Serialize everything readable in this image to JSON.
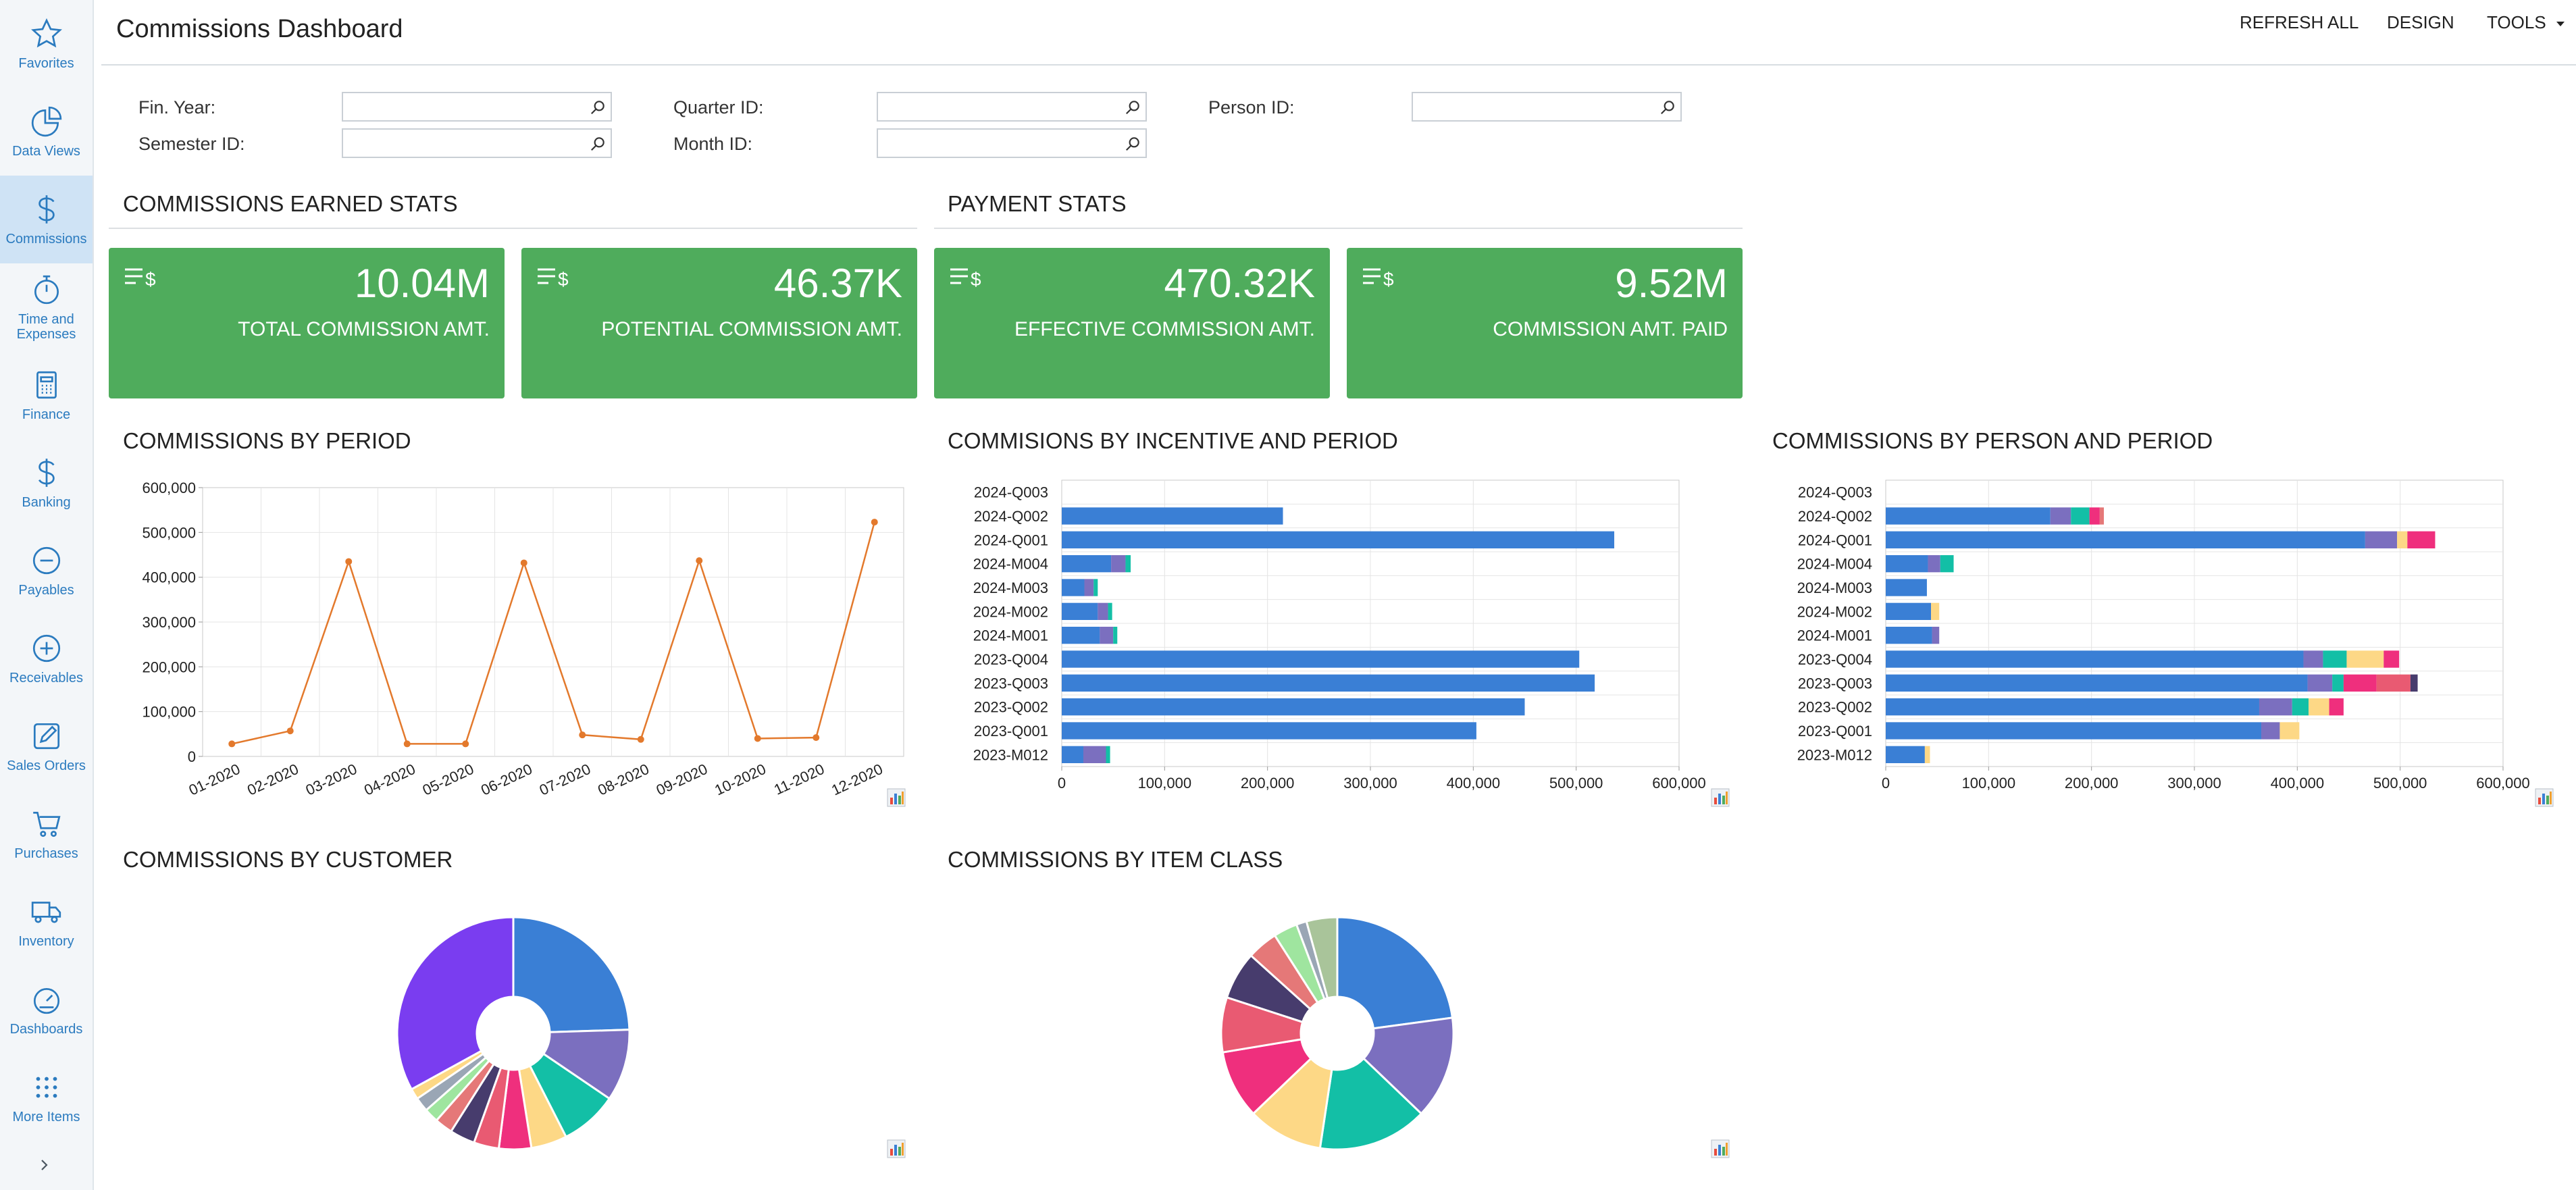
{
  "colors": {
    "accent": "#2b7bbf",
    "kpi_bg": "#4fac5c",
    "line": "#e3792c",
    "bar_primary": "#3a7fd5",
    "palette": [
      "#3a7fd5",
      "#7b6fbf",
      "#13bfa6",
      "#fdd886",
      "#ef2f7d",
      "#e95a72",
      "#473c6d",
      "#e57878",
      "#9fe59f",
      "#9aa6b5",
      "#a9c49a",
      "#7a3df0"
    ]
  },
  "sidebar": {
    "items": [
      {
        "label": "Favorites",
        "icon": "star-icon"
      },
      {
        "label": "Data Views",
        "icon": "pie-chart-icon"
      },
      {
        "label": "Commissions",
        "icon": "dollar-icon"
      },
      {
        "label": "Time and Expenses",
        "icon": "stopwatch-icon"
      },
      {
        "label": "Finance",
        "icon": "calculator-icon"
      },
      {
        "label": "Banking",
        "icon": "dollar-icon"
      },
      {
        "label": "Payables",
        "icon": "minus-circle-icon"
      },
      {
        "label": "Receivables",
        "icon": "plus-circle-icon"
      },
      {
        "label": "Sales Orders",
        "icon": "pencil-square-icon"
      },
      {
        "label": "Purchases",
        "icon": "cart-icon"
      },
      {
        "label": "Inventory",
        "icon": "truck-icon"
      },
      {
        "label": "Dashboards",
        "icon": "gauge-icon"
      },
      {
        "label": "More Items",
        "icon": "grid-dots-icon"
      }
    ],
    "active_index": 2
  },
  "header": {
    "title": "Commissions Dashboard",
    "refresh_all": "REFRESH ALL",
    "design": "DESIGN",
    "tools": "TOOLS"
  },
  "filters": {
    "fin_year": {
      "label": "Fin. Year:",
      "value": ""
    },
    "semester_id": {
      "label": "Semester ID:",
      "value": ""
    },
    "quarter_id": {
      "label": "Quarter ID:",
      "value": ""
    },
    "month_id": {
      "label": "Month ID:",
      "value": ""
    },
    "person_id": {
      "label": "Person ID:",
      "value": ""
    }
  },
  "sections": {
    "earned_stats": "COMMISSIONS EARNED STATS",
    "payment_stats": "PAYMENT STATS",
    "by_period": "COMMISSIONS BY PERIOD",
    "by_incentive": "COMMISIONS BY INCENTIVE AND PERIOD",
    "by_person": "COMMISSIONS BY PERSON AND PERIOD",
    "by_customer": "COMMISSIONS BY CUSTOMER",
    "by_item_class": "COMMISSIONS BY ITEM CLASS"
  },
  "kpis": [
    {
      "value": "10.04M",
      "label": "TOTAL COMMISSION AMT."
    },
    {
      "value": "46.37K",
      "label": "POTENTIAL COMMISSION AMT."
    },
    {
      "value": "470.32K",
      "label": "EFFECTIVE COMMISSION AMT."
    },
    {
      "value": "9.52M",
      "label": "COMMISSION AMT. PAID"
    }
  ],
  "chart_data": [
    {
      "type": "line",
      "title": "COMMISSIONS BY PERIOD",
      "categories": [
        "01-2020",
        "02-2020",
        "03-2020",
        "04-2020",
        "05-2020",
        "06-2020",
        "07-2020",
        "08-2020",
        "09-2020",
        "10-2020",
        "11-2020",
        "12-2020"
      ],
      "values": [
        28000,
        57000,
        435000,
        28000,
        28000,
        432000,
        48000,
        38000,
        437000,
        40000,
        42000,
        523000
      ],
      "ylim": [
        0,
        600000
      ],
      "yticks": [
        "0",
        "100,000",
        "200,000",
        "300,000",
        "400,000",
        "500,000",
        "600,000"
      ],
      "grid": true
    },
    {
      "type": "bar",
      "orientation": "horizontal",
      "stacked": true,
      "title": "COMMISIONS BY INCENTIVE AND PERIOD",
      "categories": [
        "2024-Q003",
        "2024-Q002",
        "2024-Q001",
        "2024-M004",
        "2024-M003",
        "2024-M002",
        "2024-M001",
        "2023-Q004",
        "2023-Q003",
        "2023-Q002",
        "2023-Q001",
        "2023-M012"
      ],
      "series": [
        {
          "values": [
            0,
            215000,
            537000,
            48000,
            22000,
            35000,
            37000,
            503000,
            518000,
            450000,
            403000,
            21000
          ]
        },
        {
          "values": [
            0,
            0,
            0,
            14000,
            9000,
            10000,
            13000,
            0,
            0,
            0,
            0,
            22000
          ]
        },
        {
          "values": [
            0,
            0,
            0,
            5000,
            4000,
            4000,
            4000,
            0,
            0,
            0,
            0,
            4000
          ]
        }
      ],
      "xlim": [
        0,
        600000
      ],
      "xticks": [
        "0",
        "100,000",
        "200,000",
        "300,000",
        "400,000",
        "500,000",
        "600,000"
      ]
    },
    {
      "type": "bar",
      "orientation": "horizontal",
      "stacked": true,
      "title": "COMMISSIONS BY PERSON AND PERIOD",
      "categories": [
        "2024-Q003",
        "2024-Q002",
        "2024-Q001",
        "2024-M004",
        "2024-M003",
        "2024-M002",
        "2024-M001",
        "2023-Q004",
        "2023-Q003",
        "2023-Q002",
        "2023-Q001",
        "2023-M012"
      ],
      "series": [
        {
          "values": [
            0,
            160000,
            466000,
            41000,
            40000,
            44000,
            45000,
            406000,
            410000,
            363000,
            365000,
            38000
          ]
        },
        {
          "values": [
            0,
            20000,
            31000,
            12000,
            0,
            0,
            7000,
            19000,
            24000,
            32000,
            18000,
            0
          ]
        },
        {
          "values": [
            0,
            18000,
            0,
            13000,
            0,
            0,
            0,
            23000,
            11000,
            16000,
            0,
            0
          ]
        },
        {
          "values": [
            0,
            0,
            10000,
            0,
            0,
            8000,
            0,
            36000,
            0,
            20000,
            19000,
            5000
          ]
        },
        {
          "values": [
            0,
            10000,
            27000,
            0,
            0,
            0,
            0,
            15000,
            32000,
            14000,
            0,
            0
          ]
        },
        {
          "values": [
            0,
            0,
            0,
            0,
            0,
            0,
            0,
            0,
            33000,
            0,
            0,
            0
          ]
        },
        {
          "values": [
            0,
            0,
            0,
            0,
            0,
            0,
            0,
            0,
            7000,
            0,
            0,
            0
          ]
        },
        {
          "values": [
            0,
            4000,
            0,
            0,
            0,
            0,
            0,
            0,
            0,
            0,
            0,
            0
          ]
        }
      ],
      "xlim": [
        0,
        600000
      ],
      "xticks": [
        "0",
        "100,000",
        "200,000",
        "300,000",
        "400,000",
        "500,000",
        "600,000"
      ]
    },
    {
      "type": "pie",
      "donut": true,
      "title": "COMMISSIONS BY CUSTOMER",
      "values": [
        24.5,
        10,
        8,
        5,
        4.5,
        3.5,
        3.5,
        2.5,
        2,
        2,
        1.5,
        33
      ],
      "color_indices": [
        0,
        1,
        2,
        3,
        4,
        5,
        6,
        7,
        8,
        9,
        3,
        11
      ]
    },
    {
      "type": "pie",
      "donut": true,
      "title": "COMMISSIONS BY ITEM CLASS",
      "values": [
        24,
        15,
        16,
        11,
        10,
        8,
        7,
        4.5,
        3.5,
        1.5,
        4.5
      ],
      "color_indices": [
        0,
        1,
        2,
        3,
        4,
        5,
        6,
        7,
        8,
        9,
        10
      ]
    }
  ]
}
